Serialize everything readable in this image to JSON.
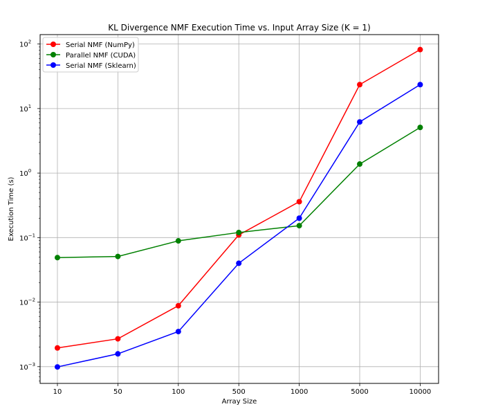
{
  "chart_data": {
    "type": "line",
    "title": "KL Divergence NMF Execution Time vs. Input Array Size (K = 1)",
    "xlabel": "Array Size",
    "ylabel": "Execution Time (s)",
    "categories": [
      "10",
      "50",
      "100",
      "500",
      "1000",
      "5000",
      "10000"
    ],
    "yscale": "log",
    "ylim": [
      0.00055,
      140
    ],
    "yticks": [
      {
        "value": 0.001,
        "base": "10",
        "exp": "−3"
      },
      {
        "value": 0.01,
        "base": "10",
        "exp": "−2"
      },
      {
        "value": 0.1,
        "base": "10",
        "exp": "−1"
      },
      {
        "value": 1,
        "base": "10",
        "exp": "0"
      },
      {
        "value": 10,
        "base": "10",
        "exp": "1"
      },
      {
        "value": 100,
        "base": "10",
        "exp": "2"
      }
    ],
    "grid": true,
    "legend_position": "top-left",
    "series": [
      {
        "name": "Serial NMF (NumPy)",
        "color": "#ff0000",
        "values": [
          0.00195,
          0.0027,
          0.0088,
          0.11,
          0.36,
          23.5,
          82
        ]
      },
      {
        "name": "Parallel NMF (CUDA)",
        "color": "#008000",
        "values": [
          0.049,
          0.051,
          0.089,
          0.12,
          0.153,
          1.38,
          5.1
        ]
      },
      {
        "name": "Serial NMF (Sklearn)",
        "color": "#0000ff",
        "values": [
          0.00099,
          0.00158,
          0.0035,
          0.04,
          0.2,
          6.2,
          23.5
        ]
      }
    ]
  }
}
